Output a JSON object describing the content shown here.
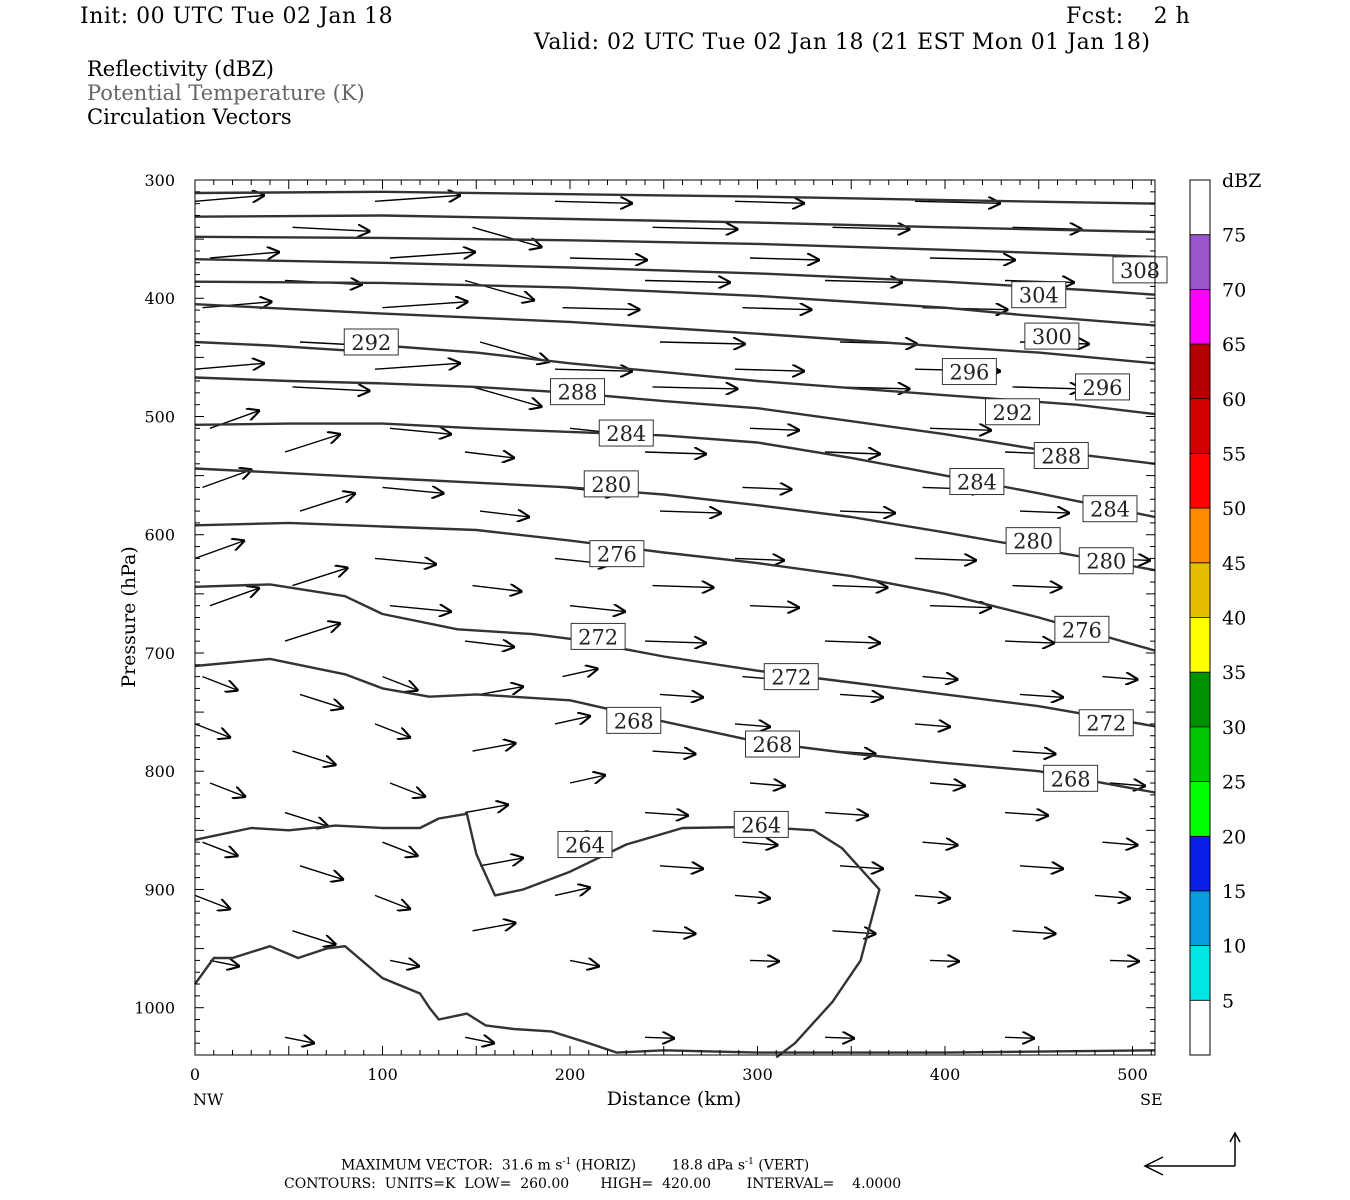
{
  "header": {
    "init": "Init: 00 UTC Tue 02 Jan 18",
    "fcst": "Fcst:    2 h",
    "valid": "Valid: 02 UTC Tue 02 Jan 18 (21 EST Mon 01 Jan 18)"
  },
  "titles": [
    "Reflectivity (dBZ)",
    "Potential Temperature (K)",
    "Circulation Vectors"
  ],
  "footer": {
    "max_vector_prefix": "MAXIMUM VECTOR:  31.6 m s",
    "max_vector_exp1": "-1",
    "max_vector_mid": " (HORIZ)        18.8 dPa s",
    "max_vector_exp2": "-1",
    "max_vector_suffix": " (VERT)",
    "contours": "CONTOURS:  UNITS=K  LOW=  260.00       HIGH=  420.00        INTERVAL=    4.0000"
  },
  "chart_data": {
    "type": "line",
    "xlabel": "Distance (km)",
    "ylabel": "Pressure (hPa)",
    "x_left_label": "NW",
    "x_right_label": "SE",
    "xlim": [
      0,
      512
    ],
    "ylim": [
      300,
      1040
    ],
    "y_reversed": true,
    "x_ticks": [
      0,
      100,
      200,
      300,
      400,
      500
    ],
    "y_ticks": [
      300,
      400,
      500,
      600,
      700,
      800,
      900,
      1000
    ],
    "contour_units": "K",
    "isentropes": [
      {
        "x": [
          0,
          100,
          200,
          300,
          400,
          512
        ],
        "y": [
          311,
          310,
          312,
          314,
          317,
          320
        ]
      },
      {
        "x": [
          0,
          100,
          200,
          300,
          400,
          512
        ],
        "y": [
          331,
          330,
          333,
          336,
          340,
          344
        ]
      },
      {
        "x": [
          0,
          100,
          200,
          300,
          400,
          512
        ],
        "y": [
          348,
          349,
          351,
          354,
          359,
          365
        ]
      },
      {
        "theta": 308,
        "x": [
          0,
          100,
          200,
          300,
          400,
          475,
          512
        ],
        "y": [
          367,
          370,
          374,
          379,
          386,
          393,
          397
        ]
      },
      {
        "theta": 304,
        "x": [
          0,
          100,
          200,
          300,
          400,
          440,
          512
        ],
        "y": [
          386,
          387,
          391,
          398,
          408,
          414,
          423
        ]
      },
      {
        "theta": 300,
        "x": [
          0,
          100,
          200,
          300,
          400,
          450,
          512
        ],
        "y": [
          405,
          413,
          420,
          430,
          441,
          446,
          455
        ]
      },
      {
        "theta": 292,
        "x": [
          0,
          40,
          80,
          100,
          150,
          200,
          300,
          400,
          470,
          512
        ],
        "y": [
          437,
          440,
          444,
          440,
          446,
          455,
          470,
          482,
          490,
          498
        ]
      },
      {
        "theta": 288,
        "x": [
          0,
          50,
          100,
          150,
          200,
          250,
          300,
          350,
          400,
          450,
          512
        ],
        "y": [
          467,
          470,
          472,
          475,
          480,
          487,
          493,
          504,
          515,
          528,
          540
        ]
      },
      {
        "theta": 284,
        "x": [
          0,
          50,
          100,
          150,
          200,
          250,
          300,
          350,
          400,
          450,
          512
        ],
        "y": [
          507,
          506,
          506,
          510,
          513,
          516,
          522,
          535,
          550,
          565,
          585
        ]
      },
      {
        "theta": 280,
        "x": [
          0,
          50,
          100,
          150,
          200,
          250,
          300,
          350,
          400,
          450,
          512
        ],
        "y": [
          544,
          548,
          552,
          556,
          560,
          566,
          575,
          585,
          598,
          612,
          630
        ]
      },
      {
        "theta": 276,
        "x": [
          0,
          50,
          100,
          150,
          200,
          250,
          300,
          350,
          400,
          450,
          512
        ],
        "y": [
          592,
          590,
          593,
          596,
          605,
          615,
          624,
          635,
          650,
          670,
          698
        ]
      },
      {
        "theta": 272,
        "x": [
          0,
          40,
          80,
          100,
          140,
          180,
          200,
          250,
          300,
          350,
          400,
          450,
          512
        ],
        "y": [
          644,
          642,
          652,
          667,
          680,
          684,
          688,
          703,
          715,
          725,
          735,
          745,
          762
        ]
      },
      {
        "theta": 268,
        "x": [
          0,
          40,
          80,
          100,
          125,
          150,
          200,
          250,
          300,
          350,
          400,
          450,
          512
        ],
        "y": [
          711,
          705,
          718,
          730,
          737,
          735,
          740,
          758,
          775,
          785,
          793,
          800,
          818
        ]
      },
      {
        "theta": 264,
        "x": [
          0,
          30,
          50,
          75,
          100,
          120,
          130,
          145,
          150,
          160,
          175,
          200,
          230,
          260,
          300,
          330,
          345,
          365,
          355,
          340,
          320,
          310
        ],
        "y": [
          858,
          848,
          850,
          846,
          848,
          848,
          840,
          836,
          870,
          905,
          900,
          885,
          862,
          848,
          847,
          850,
          865,
          900,
          960,
          995,
          1030,
          1042
        ]
      },
      {
        "x": [
          0,
          10,
          20,
          40,
          55,
          70,
          80,
          100,
          120,
          125,
          130,
          145,
          155,
          170,
          190,
          210,
          225,
          250,
          300,
          400,
          512
        ],
        "y": [
          980,
          958,
          958,
          948,
          958,
          950,
          948,
          975,
          988,
          1000,
          1010,
          1005,
          1015,
          1018,
          1020,
          1030,
          1038,
          1036,
          1038,
          1038,
          1036
        ]
      }
    ],
    "contour_labels": [
      {
        "text": "308",
        "x": 504,
        "y": 376
      },
      {
        "text": "304",
        "x": 450,
        "y": 397
      },
      {
        "text": "300",
        "x": 457,
        "y": 432
      },
      {
        "text": "292",
        "x": 94,
        "y": 437
      },
      {
        "text": "296",
        "x": 413,
        "y": 462
      },
      {
        "text": "296",
        "x": 484,
        "y": 475
      },
      {
        "text": "288",
        "x": 204,
        "y": 479
      },
      {
        "text": "292",
        "x": 436,
        "y": 496
      },
      {
        "text": "284",
        "x": 230,
        "y": 514
      },
      {
        "text": "288",
        "x": 462,
        "y": 533
      },
      {
        "text": "280",
        "x": 222,
        "y": 557
      },
      {
        "text": "284",
        "x": 417,
        "y": 555
      },
      {
        "text": "284",
        "x": 488,
        "y": 578
      },
      {
        "text": "276",
        "x": 225,
        "y": 616
      },
      {
        "text": "280",
        "x": 447,
        "y": 605
      },
      {
        "text": "280",
        "x": 486,
        "y": 622
      },
      {
        "text": "272",
        "x": 215,
        "y": 686
      },
      {
        "text": "276",
        "x": 473,
        "y": 680
      },
      {
        "text": "272",
        "x": 318,
        "y": 720
      },
      {
        "text": "268",
        "x": 234,
        "y": 757
      },
      {
        "text": "272",
        "x": 486,
        "y": 759
      },
      {
        "text": "268",
        "x": 308,
        "y": 777
      },
      {
        "text": "268",
        "x": 467,
        "y": 806
      },
      {
        "text": "264",
        "x": 302,
        "y": 845
      },
      {
        "text": "264",
        "x": 208,
        "y": 862
      }
    ],
    "colorbar": {
      "title": "dBZ",
      "labels": [
        "5",
        "10",
        "15",
        "20",
        "25",
        "30",
        "35",
        "40",
        "45",
        "50",
        "55",
        "60",
        "65",
        "70",
        "75"
      ],
      "colors": [
        "#ffffff",
        "#00e6e6",
        "#0a9ae0",
        "#0a1ee6",
        "#00ff00",
        "#00c800",
        "#009000",
        "#ffff00",
        "#e6be00",
        "#ff8c00",
        "#ff0000",
        "#d20000",
        "#b40000",
        "#ff00ff",
        "#9955cc",
        "#ffffff"
      ]
    }
  }
}
